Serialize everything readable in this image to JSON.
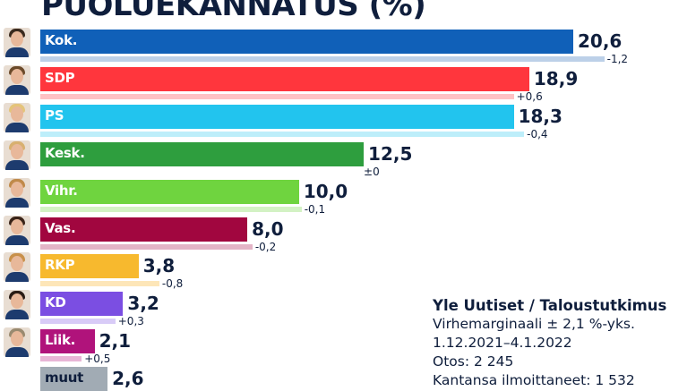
{
  "chart_data": {
    "type": "bar",
    "orientation": "horizontal",
    "title": "PUOLUEKANNATUS (%)",
    "categories": [
      "Kok.",
      "SDP",
      "PS",
      "Kesk.",
      "Vihr.",
      "Vas.",
      "RKP",
      "KD",
      "Liik.",
      "muut"
    ],
    "series": [
      {
        "values": [
          20.6,
          18.9,
          18.3,
          12.5,
          10.0,
          8.0,
          3.8,
          3.2,
          2.1,
          2.6
        ],
        "labels": [
          "20,6",
          "18,9",
          "18,3",
          "12,5",
          "10,0",
          "8,0",
          "3,8",
          "3,2",
          "2,1",
          "2,6"
        ]
      },
      {
        "values": [
          21.8,
          18.3,
          18.7,
          12.5,
          10.1,
          8.2,
          4.6,
          2.9,
          1.6,
          null
        ]
      }
    ],
    "changes": [
      "-1,2",
      "+0,6",
      "-0,4",
      "±0",
      "-0,1",
      "-0,2",
      "-0,8",
      "+0,3",
      "+0,5",
      ""
    ],
    "colors": [
      "#1060b8",
      "#ff363d",
      "#22c4ee",
      "#2e9e3e",
      "#6fd43f",
      "#a1063f",
      "#f7b92e",
      "#7b4ee2",
      "#b0137b",
      "#a1abb4"
    ],
    "prev_colors": [
      "#bcd0e8",
      "#ffc2c4",
      "#bdeefa",
      "",
      "#d3f2c4",
      "#e3b4c6",
      "#fde6b8",
      "#d8cbf7",
      "#e8b6d6",
      ""
    ],
    "label_colors": [
      "#fff",
      "#fff",
      "#fff",
      "#fff",
      "#fff",
      "#fff",
      "#fff",
      "#fff",
      "#fff",
      "#0f1e3c"
    ],
    "has_photo": [
      true,
      true,
      true,
      true,
      true,
      true,
      true,
      true,
      true,
      false
    ],
    "hair_colors": [
      "#3a2a1e",
      "#6b4a2a",
      "#e4c47a",
      "#d8b070",
      "#c08a4a",
      "#3a2418",
      "#c8904a",
      "#2a1c14",
      "#9a8a70",
      ""
    ],
    "xlim": [
      0,
      22
    ]
  },
  "source": {
    "title": "Yle Uutiset / Taloustutkimus",
    "margin": "Virhemarginaali ± 2,1 %-yks.",
    "dates": "1.12.2021–4.1.2022",
    "sample": "Otos: 2 245",
    "respondents": "Kantansa ilmoittaneet: 1 532"
  }
}
